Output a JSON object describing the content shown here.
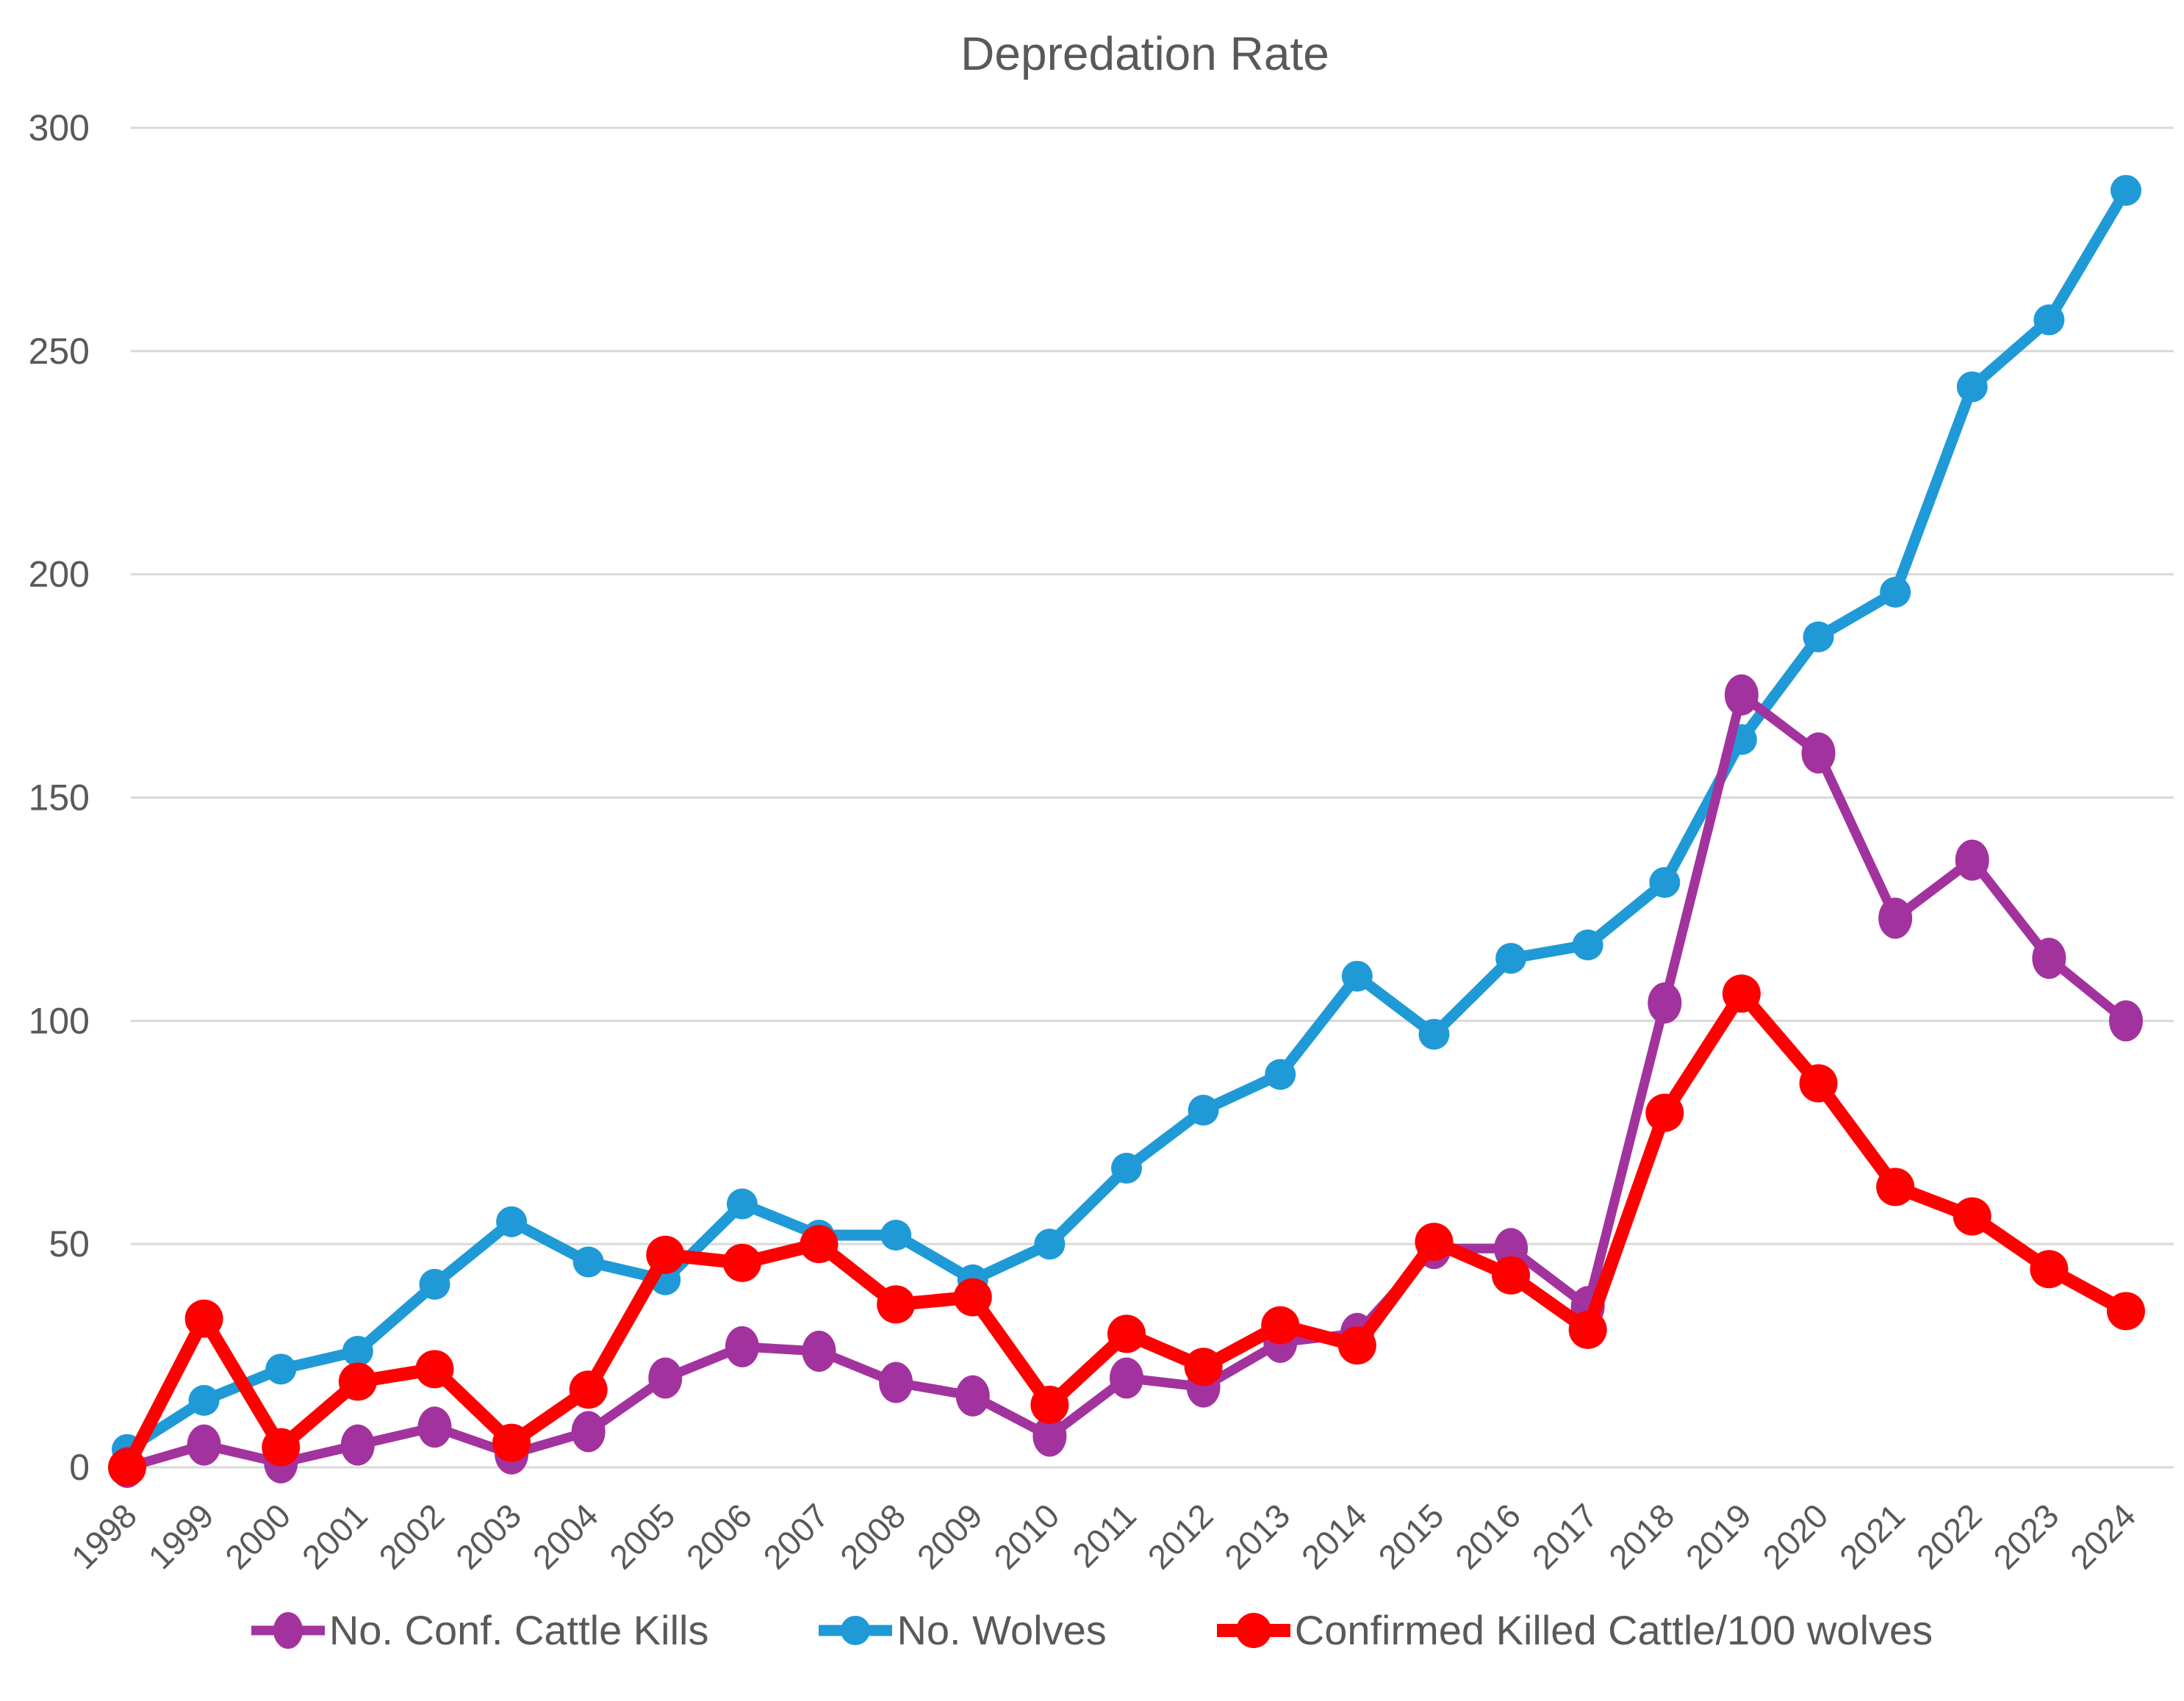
{
  "chart_data": {
    "type": "line",
    "title": "Depredation Rate",
    "x_categories": [
      "1998",
      "1999",
      "2000",
      "2001",
      "2002",
      "2003",
      "2004",
      "2005",
      "2006",
      "2007",
      "2008",
      "2009",
      "2010",
      "2011",
      "2012",
      "2013",
      "2014",
      "2015",
      "2016",
      "2017",
      "2018",
      "2019",
      "2020",
      "2021",
      "2022",
      "2023",
      "2024"
    ],
    "y_ticks": [
      0,
      50,
      100,
      150,
      200,
      250,
      300
    ],
    "ylim": [
      0,
      300
    ],
    "grid": "horizontal",
    "legend_position": "bottom",
    "series": [
      {
        "name": "No. Conf. Cattle Kills",
        "color": "#A2339E",
        "marker": "ellipse",
        "values": [
          0,
          5,
          1,
          5,
          9,
          3,
          8,
          20,
          27,
          26,
          19,
          16,
          7,
          20,
          18,
          28,
          30,
          49,
          49,
          36,
          104,
          173,
          160,
          123,
          136,
          114,
          100
        ]
      },
      {
        "name": "No. Wolves",
        "color": "#1F9AD7",
        "marker": "circle",
        "values": [
          4,
          15,
          22,
          26,
          41,
          55,
          46,
          42,
          59,
          52,
          52,
          42,
          50,
          67,
          80,
          88,
          110,
          97,
          114,
          117,
          131,
          163,
          186,
          196,
          242,
          257,
          286
        ]
      },
      {
        "name": "Confirmed Killed Cattle/100 wolves",
        "color": "#FF0000",
        "marker": "circle",
        "values": [
          0,
          33.3,
          4.5,
          19.2,
          22.0,
          5.5,
          17.4,
          47.6,
          45.8,
          50.0,
          36.5,
          38.1,
          14.0,
          29.9,
          22.5,
          31.8,
          27.3,
          50.5,
          43.0,
          30.8,
          79.4,
          106.1,
          86.0,
          62.8,
          56.2,
          44.4,
          35.0
        ]
      }
    ],
    "colors": {
      "text": "#595959",
      "gridline": "#D9D9D9",
      "background": "#FFFFFF"
    }
  },
  "layout_note": "z-order bottom to top: No. Wolves, No. Conf. Cattle Kills, Confirmed Killed Cattle/100 wolves"
}
